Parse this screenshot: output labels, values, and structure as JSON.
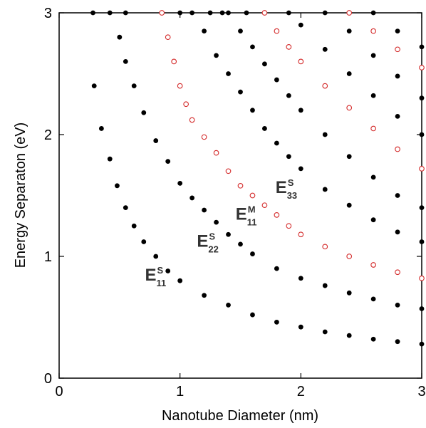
{
  "chart_data": {
    "type": "scatter",
    "title": "",
    "xlabel": "Nanotube Diameter (nm)",
    "ylabel": "Energy Separaton (eV)",
    "xlim": [
      0,
      3
    ],
    "ylim": [
      0,
      3
    ],
    "x_ticks": [
      "0",
      "1",
      "2",
      "3"
    ],
    "y_ticks": [
      "0",
      "1",
      "2",
      "3"
    ],
    "grid": false,
    "legend": "none",
    "series": [
      {
        "branch": "E11S",
        "marker": "filled",
        "color": "#000000",
        "points": [
          [
            0.29,
            2.4
          ],
          [
            0.35,
            2.05
          ],
          [
            0.42,
            1.8
          ],
          [
            0.48,
            1.58
          ],
          [
            0.55,
            1.4
          ],
          [
            0.62,
            1.25
          ],
          [
            0.7,
            1.12
          ],
          [
            0.8,
            1.0
          ],
          [
            0.9,
            0.88
          ],
          [
            1.0,
            0.8
          ],
          [
            1.2,
            0.68
          ],
          [
            1.4,
            0.6
          ],
          [
            1.6,
            0.52
          ],
          [
            1.8,
            0.46
          ],
          [
            2.0,
            0.42
          ],
          [
            2.2,
            0.38
          ],
          [
            2.4,
            0.35
          ],
          [
            2.6,
            0.32
          ],
          [
            2.8,
            0.3
          ],
          [
            3.0,
            0.28
          ]
        ]
      },
      {
        "branch": "E22S",
        "marker": "filled",
        "color": "#000000",
        "points": [
          [
            0.5,
            2.8
          ],
          [
            0.55,
            2.6
          ],
          [
            0.62,
            2.4
          ],
          [
            0.7,
            2.18
          ],
          [
            0.8,
            1.95
          ],
          [
            0.9,
            1.78
          ],
          [
            1.0,
            1.6
          ],
          [
            1.1,
            1.48
          ],
          [
            1.2,
            1.38
          ],
          [
            1.3,
            1.28
          ],
          [
            1.4,
            1.18
          ],
          [
            1.5,
            1.1
          ],
          [
            1.6,
            1.02
          ],
          [
            1.8,
            0.9
          ],
          [
            2.0,
            0.82
          ],
          [
            2.2,
            0.76
          ],
          [
            2.4,
            0.7
          ],
          [
            2.6,
            0.65
          ],
          [
            2.8,
            0.6
          ],
          [
            3.0,
            0.57
          ]
        ]
      },
      {
        "branch": "E11M",
        "marker": "open",
        "color": "#d42a2a",
        "points": [
          [
            0.85,
            3.0
          ],
          [
            0.9,
            2.8
          ],
          [
            0.95,
            2.6
          ],
          [
            1.0,
            2.4
          ],
          [
            1.05,
            2.25
          ],
          [
            1.1,
            2.12
          ],
          [
            1.2,
            1.98
          ],
          [
            1.3,
            1.85
          ],
          [
            1.4,
            1.7
          ],
          [
            1.5,
            1.58
          ],
          [
            1.6,
            1.5
          ],
          [
            1.7,
            1.42
          ],
          [
            1.8,
            1.34
          ],
          [
            1.9,
            1.25
          ],
          [
            2.0,
            1.18
          ],
          [
            2.2,
            1.08
          ],
          [
            2.4,
            1.0
          ],
          [
            2.6,
            0.93
          ],
          [
            2.8,
            0.87
          ],
          [
            3.0,
            0.82
          ]
        ]
      },
      {
        "branch": "E33S",
        "marker": "filled",
        "color": "#000000",
        "points": [
          [
            1.2,
            2.85
          ],
          [
            1.3,
            2.65
          ],
          [
            1.4,
            2.5
          ],
          [
            1.5,
            2.35
          ],
          [
            1.6,
            2.2
          ],
          [
            1.7,
            2.05
          ],
          [
            1.8,
            1.93
          ],
          [
            1.9,
            1.82
          ],
          [
            2.0,
            1.72
          ],
          [
            2.2,
            1.55
          ],
          [
            2.4,
            1.42
          ],
          [
            2.6,
            1.3
          ],
          [
            2.8,
            1.2
          ],
          [
            3.0,
            1.12
          ]
        ]
      },
      {
        "branch": "E44S",
        "marker": "filled",
        "color": "#000000",
        "points": [
          [
            1.4,
            3.0
          ],
          [
            1.5,
            2.85
          ],
          [
            1.6,
            2.72
          ],
          [
            1.7,
            2.58
          ],
          [
            1.8,
            2.45
          ],
          [
            1.9,
            2.32
          ],
          [
            2.0,
            2.2
          ],
          [
            2.2,
            2.0
          ],
          [
            2.4,
            1.82
          ],
          [
            2.6,
            1.65
          ],
          [
            2.8,
            1.5
          ],
          [
            3.0,
            1.4
          ]
        ]
      },
      {
        "branch": "E22M",
        "marker": "open",
        "color": "#d42a2a",
        "points": [
          [
            1.7,
            3.0
          ],
          [
            1.8,
            2.85
          ],
          [
            1.9,
            2.72
          ],
          [
            2.0,
            2.6
          ],
          [
            2.2,
            2.4
          ],
          [
            2.4,
            2.22
          ],
          [
            2.6,
            2.05
          ],
          [
            2.8,
            1.88
          ],
          [
            3.0,
            1.72
          ]
        ]
      },
      {
        "branch": "E55S",
        "marker": "filled",
        "color": "#000000",
        "points": [
          [
            1.9,
            3.0
          ],
          [
            2.0,
            2.9
          ],
          [
            2.2,
            2.7
          ],
          [
            2.4,
            2.5
          ],
          [
            2.6,
            2.32
          ],
          [
            2.8,
            2.15
          ],
          [
            3.0,
            2.0
          ]
        ]
      },
      {
        "branch": "E66S",
        "marker": "filled",
        "color": "#000000",
        "points": [
          [
            2.2,
            3.0
          ],
          [
            2.4,
            2.85
          ],
          [
            2.6,
            2.65
          ],
          [
            2.8,
            2.48
          ],
          [
            3.0,
            2.3
          ]
        ]
      },
      {
        "branch": "E33M",
        "marker": "open",
        "color": "#d42a2a",
        "points": [
          [
            2.4,
            3.0
          ],
          [
            2.6,
            2.85
          ],
          [
            2.8,
            2.7
          ],
          [
            3.0,
            2.55
          ]
        ]
      },
      {
        "branch": "E77S",
        "marker": "filled",
        "color": "#000000",
        "points": [
          [
            2.6,
            3.0
          ],
          [
            2.8,
            2.85
          ],
          [
            3.0,
            2.72
          ]
        ]
      },
      {
        "branch": "top-edge",
        "marker": "filled",
        "color": "#000000",
        "points": [
          [
            0.28,
            3.0
          ],
          [
            0.42,
            3.0
          ],
          [
            0.55,
            3.0
          ],
          [
            1.0,
            3.0
          ],
          [
            1.1,
            3.0
          ],
          [
            1.25,
            3.0
          ],
          [
            1.35,
            3.0
          ],
          [
            1.55,
            3.0
          ]
        ]
      }
    ],
    "annotations": [
      {
        "main": "E",
        "sup": "S",
        "sub": "11",
        "x": 0.71,
        "y": 0.8
      },
      {
        "main": "E",
        "sup": "S",
        "sub": "22",
        "x": 1.14,
        "y": 1.08
      },
      {
        "main": "E",
        "sup": "M",
        "sub": "11",
        "x": 1.46,
        "y": 1.3
      },
      {
        "main": "E",
        "sup": "S",
        "sub": "33",
        "x": 1.79,
        "y": 1.52
      }
    ]
  }
}
